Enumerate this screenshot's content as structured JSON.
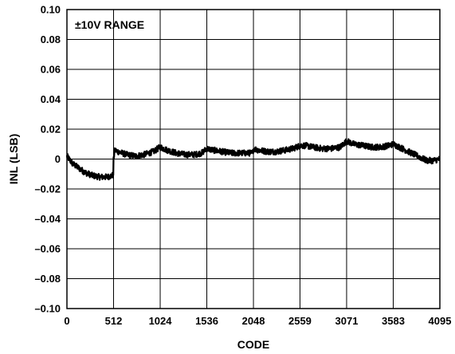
{
  "chart_data": {
    "type": "line",
    "annotation": "±10V RANGE",
    "xlabel": "CODE",
    "ylabel": "INL (LSB)",
    "xlim": [
      0,
      4095
    ],
    "ylim": [
      -0.1,
      0.1
    ],
    "grid": true,
    "x_ticks": [
      0,
      512,
      1024,
      1536,
      2048,
      2559,
      3071,
      3583,
      4095
    ],
    "x_tick_labels": [
      "0",
      "512",
      "1024",
      "1536",
      "2048",
      "2559",
      "3071",
      "3583",
      "4095"
    ],
    "y_ticks": [
      0.1,
      0.08,
      0.06,
      0.04,
      0.02,
      0,
      -0.02,
      -0.04,
      -0.06,
      -0.08,
      -0.1
    ],
    "y_tick_labels": [
      "0.10",
      "0.08",
      "0.06",
      "0.04",
      "0.02",
      "0",
      "–0.02",
      "–0.04",
      "–0.06",
      "–0.08",
      "–0.10"
    ],
    "series": [
      {
        "color": "#000000",
        "points": [
          [
            0,
            0.002
          ],
          [
            60,
            -0.003
          ],
          [
            130,
            -0.006
          ],
          [
            200,
            -0.009
          ],
          [
            280,
            -0.011
          ],
          [
            360,
            -0.012
          ],
          [
            440,
            -0.012
          ],
          [
            500,
            -0.011
          ],
          [
            510,
            -0.01
          ],
          [
            512,
            0.0
          ],
          [
            525,
            0.006
          ],
          [
            560,
            0.005
          ],
          [
            650,
            0.003
          ],
          [
            750,
            0.002
          ],
          [
            850,
            0.003
          ],
          [
            950,
            0.005
          ],
          [
            1024,
            0.008
          ],
          [
            1100,
            0.006
          ],
          [
            1200,
            0.004
          ],
          [
            1300,
            0.003
          ],
          [
            1400,
            0.003
          ],
          [
            1480,
            0.004
          ],
          [
            1536,
            0.007
          ],
          [
            1600,
            0.006
          ],
          [
            1700,
            0.005
          ],
          [
            1800,
            0.004
          ],
          [
            1900,
            0.004
          ],
          [
            2000,
            0.004
          ],
          [
            2040,
            0.004
          ],
          [
            2048,
            0.007
          ],
          [
            2100,
            0.006
          ],
          [
            2200,
            0.005
          ],
          [
            2300,
            0.005
          ],
          [
            2400,
            0.006
          ],
          [
            2480,
            0.007
          ],
          [
            2559,
            0.009
          ],
          [
            2620,
            0.009
          ],
          [
            2700,
            0.008
          ],
          [
            2800,
            0.007
          ],
          [
            2900,
            0.007
          ],
          [
            3000,
            0.008
          ],
          [
            3071,
            0.012
          ],
          [
            3150,
            0.01
          ],
          [
            3250,
            0.009
          ],
          [
            3350,
            0.008
          ],
          [
            3450,
            0.008
          ],
          [
            3530,
            0.009
          ],
          [
            3583,
            0.01
          ],
          [
            3650,
            0.008
          ],
          [
            3750,
            0.005
          ],
          [
            3850,
            0.002
          ],
          [
            3950,
            -0.001
          ],
          [
            4020,
            -0.001
          ],
          [
            4095,
            0.0
          ]
        ]
      }
    ]
  }
}
